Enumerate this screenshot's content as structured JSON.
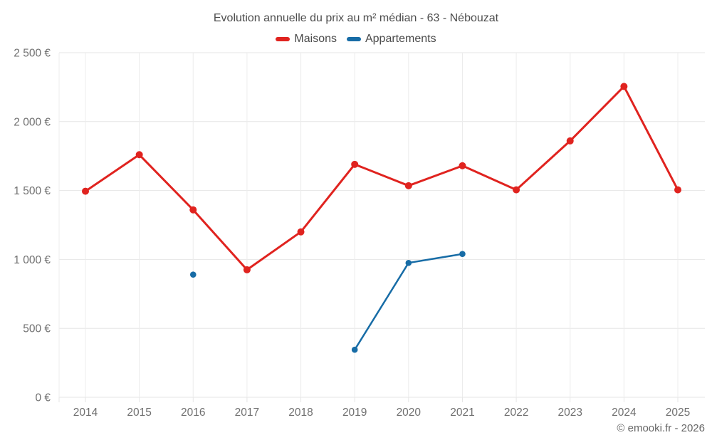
{
  "title": "Evolution annuelle du prix au m² médian - 63 - Nébouzat",
  "copyright": "© emooki.fr - 2026",
  "colors": {
    "maisons": "#e0231f",
    "appartements": "#176ca6",
    "grid_horizontal": "#e6e6e6",
    "grid_vertical": "#ececec",
    "axis_label": "#707070",
    "title_text": "#4d4d4d",
    "background": "#ffffff"
  },
  "legend": [
    {
      "label": "Maisons",
      "color": "#e0231f"
    },
    {
      "label": "Appartements",
      "color": "#176ca6"
    }
  ],
  "chart_data": {
    "type": "line",
    "title": "Evolution annuelle du prix au m² médian - 63 - Nébouzat",
    "x": [
      2014,
      2015,
      2016,
      2017,
      2018,
      2019,
      2020,
      2021,
      2022,
      2023,
      2024,
      2025
    ],
    "series": [
      {
        "name": "Maisons",
        "color": "#e0231f",
        "values": [
          1495,
          1760,
          1360,
          925,
          1200,
          1690,
          1535,
          1680,
          1505,
          1860,
          2255,
          1505
        ]
      },
      {
        "name": "Appartements",
        "color": "#176ca6",
        "values": [
          null,
          null,
          890,
          null,
          null,
          345,
          975,
          1040,
          null,
          null,
          null,
          null
        ]
      }
    ],
    "xlabel": "",
    "ylabel": "",
    "ylim": [
      0,
      2500
    ],
    "ytick_step": 500,
    "ytick_labels": [
      "0 €",
      "500 €",
      "1 000 €",
      "1 500 €",
      "2 000 €",
      "2 500 €"
    ],
    "grid": true,
    "legend_position": "top",
    "currency": "€"
  }
}
